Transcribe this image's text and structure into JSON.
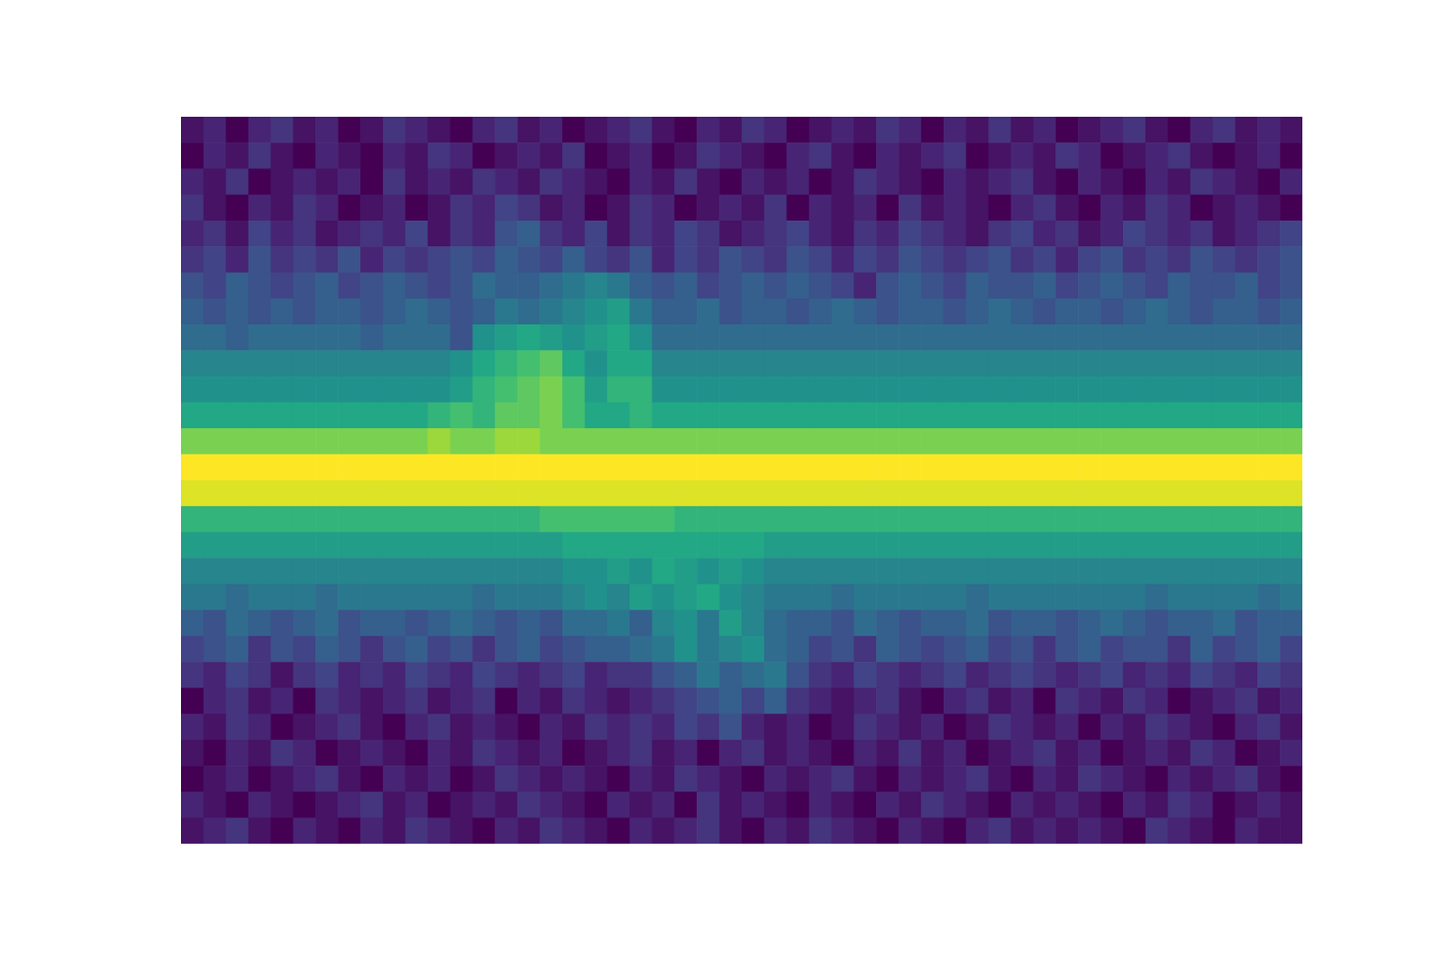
{
  "chart_data": {
    "type": "heatmap",
    "color": "viridis",
    "tick_labels": false,
    "zlim": [
      0,
      20
    ],
    "cells": [
      [
        1,
        2,
        0,
        2,
        3,
        1,
        2,
        0,
        1,
        3,
        2,
        1,
        0,
        2,
        3,
        1,
        2,
        0,
        1,
        2,
        3,
        1,
        0,
        2,
        1,
        3,
        2,
        0,
        1,
        2,
        1,
        3,
        2,
        0,
        2,
        1,
        3,
        1,
        2,
        0,
        1,
        2,
        3,
        1,
        0,
        2,
        3,
        1,
        2,
        1
      ],
      [
        0,
        2,
        1,
        3,
        1,
        0,
        2,
        1,
        0,
        2,
        1,
        3,
        2,
        0,
        1,
        2,
        1,
        3,
        0,
        1,
        2,
        0,
        1,
        3,
        2,
        1,
        0,
        2,
        3,
        1,
        0,
        2,
        1,
        2,
        3,
        0,
        1,
        2,
        1,
        3,
        2,
        0,
        1,
        2,
        3,
        1,
        0,
        1,
        2,
        0
      ],
      [
        2,
        1,
        3,
        0,
        1,
        2,
        1,
        2,
        0,
        3,
        1,
        2,
        1,
        3,
        2,
        1,
        3,
        2,
        1,
        0,
        2,
        1,
        3,
        1,
        0,
        2,
        1,
        2,
        0,
        1,
        3,
        2,
        1,
        0,
        2,
        1,
        2,
        3,
        1,
        0,
        2,
        1,
        0,
        2,
        1,
        3,
        2,
        1,
        0,
        2
      ],
      [
        3,
        1,
        0,
        2,
        1,
        3,
        2,
        0,
        1,
        2,
        0,
        1,
        3,
        2,
        4,
        3,
        1,
        2,
        0,
        1,
        3,
        2,
        0,
        1,
        2,
        1,
        3,
        0,
        2,
        1,
        2,
        0,
        3,
        1,
        2,
        1,
        0,
        2,
        3,
        1,
        0,
        2,
        1,
        3,
        2,
        0,
        1,
        2,
        1,
        0
      ],
      [
        2,
        3,
        1,
        4,
        2,
        3,
        1,
        2,
        3,
        2,
        4,
        1,
        3,
        2,
        5,
        6,
        3,
        2,
        4,
        1,
        3,
        2,
        4,
        3,
        1,
        2,
        3,
        4,
        2,
        1,
        3,
        2,
        4,
        3,
        2,
        1,
        3,
        4,
        2,
        3,
        1,
        2,
        4,
        3,
        2,
        3,
        1,
        2,
        3,
        4
      ],
      [
        3,
        4,
        2,
        5,
        3,
        4,
        3,
        5,
        2,
        4,
        3,
        4,
        5,
        4,
        6,
        5,
        4,
        6,
        4,
        3,
        5,
        2,
        4,
        3,
        5,
        4,
        3,
        5,
        4,
        2,
        4,
        3,
        5,
        4,
        3,
        4,
        5,
        3,
        4,
        2,
        4,
        5,
        3,
        4,
        3,
        5,
        4,
        3,
        4,
        5
      ],
      [
        5,
        4,
        6,
        5,
        4,
        5,
        6,
        4,
        5,
        6,
        5,
        4,
        5,
        7,
        6,
        6,
        7,
        8,
        9,
        8,
        6,
        5,
        6,
        4,
        5,
        6,
        5,
        6,
        5,
        4,
        2,
        5,
        6,
        5,
        4,
        6,
        5,
        5,
        6,
        4,
        5,
        6,
        5,
        4,
        6,
        5,
        5,
        6,
        4,
        5
      ],
      [
        6,
        5,
        6,
        5,
        6,
        5,
        6,
        6,
        5,
        6,
        7,
        6,
        5,
        6,
        8,
        7,
        8,
        9,
        10,
        11,
        8,
        6,
        6,
        7,
        5,
        6,
        6,
        5,
        6,
        7,
        6,
        5,
        6,
        6,
        5,
        6,
        7,
        6,
        5,
        6,
        6,
        5,
        6,
        7,
        6,
        5,
        6,
        6,
        5,
        6
      ],
      [
        7,
        7,
        6,
        7,
        7,
        7,
        7,
        7,
        6,
        7,
        7,
        7,
        5,
        10,
        11,
        12,
        11,
        10,
        11,
        12,
        10,
        7,
        7,
        7,
        7,
        7,
        7,
        7,
        7,
        7,
        7,
        7,
        7,
        7,
        7,
        7,
        7,
        7,
        7,
        7,
        7,
        7,
        7,
        7,
        7,
        7,
        7,
        7,
        7,
        7
      ],
      [
        9,
        9,
        9,
        9,
        9,
        9,
        9,
        9,
        9,
        9,
        9,
        9,
        10,
        12,
        13,
        14,
        15,
        12,
        10,
        12,
        12,
        9,
        9,
        9,
        9,
        9,
        9,
        9,
        9,
        9,
        9,
        9,
        9,
        9,
        9,
        9,
        9,
        9,
        9,
        9,
        9,
        9,
        9,
        9,
        9,
        9,
        9,
        9,
        9,
        9
      ],
      [
        10,
        10,
        10,
        10,
        10,
        10,
        10,
        10,
        10,
        10,
        10,
        10,
        11,
        13,
        14,
        15,
        16,
        14,
        11,
        13,
        13,
        10,
        10,
        10,
        10,
        10,
        10,
        10,
        10,
        10,
        10,
        10,
        10,
        10,
        10,
        10,
        10,
        10,
        10,
        10,
        10,
        10,
        10,
        10,
        10,
        10,
        10,
        10,
        10,
        10
      ],
      [
        12,
        12,
        12,
        12,
        12,
        12,
        12,
        12,
        12,
        12,
        12,
        13,
        14,
        13,
        15,
        15,
        16,
        14,
        12,
        12,
        13,
        12,
        12,
        12,
        12,
        12,
        12,
        12,
        12,
        12,
        12,
        12,
        12,
        12,
        12,
        12,
        12,
        12,
        12,
        12,
        12,
        12,
        12,
        12,
        12,
        12,
        12,
        12,
        12,
        12
      ],
      [
        16,
        16,
        16,
        16,
        16,
        16,
        16,
        16,
        16,
        16,
        16,
        17,
        16,
        16,
        17,
        17,
        16,
        16,
        16,
        16,
        16,
        16,
        16,
        16,
        16,
        16,
        16,
        16,
        16,
        16,
        16,
        16,
        16,
        16,
        16,
        16,
        16,
        16,
        16,
        16,
        16,
        16,
        16,
        16,
        16,
        16,
        16,
        16,
        16,
        16
      ],
      [
        20,
        20,
        20,
        20,
        20,
        20,
        20,
        20,
        20,
        20,
        20,
        20,
        20,
        20,
        20,
        20,
        20,
        20,
        20,
        20,
        20,
        20,
        20,
        20,
        20,
        20,
        20,
        20,
        20,
        20,
        20,
        20,
        20,
        20,
        20,
        20,
        20,
        20,
        20,
        20,
        20,
        20,
        20,
        20,
        20,
        20,
        20,
        20,
        20,
        20
      ],
      [
        19,
        19,
        19,
        19,
        19,
        19,
        19,
        19,
        19,
        19,
        19,
        19,
        19,
        19,
        19,
        19,
        19,
        19,
        19,
        19,
        19,
        19,
        19,
        19,
        19,
        19,
        19,
        19,
        19,
        19,
        19,
        19,
        19,
        19,
        19,
        19,
        19,
        19,
        19,
        19,
        19,
        19,
        19,
        19,
        19,
        19,
        19,
        19,
        19,
        19
      ],
      [
        13,
        13,
        13,
        13,
        13,
        13,
        13,
        13,
        13,
        13,
        13,
        13,
        13,
        13,
        13,
        13,
        14,
        14,
        14,
        14,
        14,
        14,
        13,
        13,
        13,
        13,
        13,
        13,
        13,
        13,
        13,
        13,
        13,
        13,
        13,
        13,
        13,
        13,
        13,
        13,
        13,
        13,
        13,
        13,
        13,
        13,
        13,
        13,
        13,
        13
      ],
      [
        11,
        11,
        11,
        11,
        11,
        11,
        11,
        11,
        11,
        11,
        11,
        11,
        11,
        11,
        11,
        11,
        11,
        12,
        12,
        12,
        12,
        12,
        12,
        12,
        12,
        12,
        11,
        11,
        11,
        11,
        11,
        11,
        11,
        11,
        11,
        11,
        11,
        11,
        11,
        11,
        11,
        11,
        11,
        11,
        11,
        11,
        11,
        11,
        11,
        11
      ],
      [
        9,
        9,
        9,
        9,
        9,
        9,
        9,
        9,
        9,
        9,
        9,
        9,
        9,
        9,
        9,
        9,
        9,
        10,
        10,
        11,
        10,
        12,
        11,
        10,
        11,
        10,
        9,
        9,
        9,
        9,
        9,
        9,
        9,
        9,
        9,
        9,
        9,
        9,
        9,
        9,
        9,
        9,
        9,
        9,
        9,
        9,
        9,
        9,
        9,
        9
      ],
      [
        8,
        8,
        7,
        8,
        8,
        8,
        7,
        8,
        8,
        8,
        8,
        8,
        8,
        7,
        8,
        8,
        8,
        9,
        10,
        9,
        11,
        10,
        11,
        12,
        10,
        9,
        8,
        8,
        8,
        7,
        8,
        8,
        8,
        8,
        8,
        7,
        8,
        8,
        8,
        8,
        8,
        8,
        8,
        7,
        8,
        8,
        8,
        8,
        7,
        8
      ],
      [
        6,
        5,
        7,
        6,
        5,
        6,
        7,
        5,
        6,
        6,
        5,
        6,
        7,
        6,
        5,
        6,
        5,
        7,
        7,
        8,
        6,
        9,
        10,
        8,
        11,
        9,
        7,
        6,
        6,
        5,
        7,
        6,
        5,
        6,
        6,
        7,
        5,
        6,
        6,
        5,
        6,
        7,
        6,
        5,
        6,
        6,
        7,
        5,
        6,
        6
      ],
      [
        4,
        5,
        6,
        3,
        5,
        4,
        6,
        5,
        3,
        5,
        6,
        4,
        5,
        3,
        5,
        6,
        4,
        5,
        6,
        6,
        7,
        8,
        10,
        8,
        9,
        10,
        7,
        6,
        4,
        5,
        3,
        6,
        5,
        4,
        5,
        6,
        4,
        5,
        3,
        5,
        6,
        4,
        5,
        5,
        3,
        6,
        4,
        5,
        6,
        4
      ],
      [
        3,
        2,
        4,
        3,
        1,
        3,
        4,
        2,
        3,
        2,
        4,
        3,
        2,
        4,
        3,
        2,
        3,
        4,
        2,
        3,
        3,
        5,
        6,
        8,
        6,
        7,
        8,
        5,
        3,
        2,
        4,
        3,
        2,
        3,
        4,
        2,
        3,
        4,
        3,
        2,
        3,
        4,
        2,
        3,
        2,
        4,
        3,
        2,
        4,
        3
      ],
      [
        0,
        2,
        3,
        1,
        2,
        0,
        3,
        2,
        1,
        2,
        3,
        1,
        2,
        3,
        0,
        2,
        1,
        3,
        2,
        1,
        2,
        3,
        4,
        5,
        6,
        4,
        6,
        3,
        2,
        1,
        2,
        3,
        1,
        0,
        2,
        3,
        1,
        2,
        0,
        3,
        2,
        1,
        3,
        2,
        0,
        1,
        2,
        3,
        1,
        2
      ],
      [
        2,
        1,
        3,
        2,
        0,
        1,
        2,
        3,
        1,
        0,
        2,
        3,
        1,
        2,
        1,
        0,
        2,
        1,
        3,
        2,
        3,
        2,
        4,
        3,
        5,
        2,
        1,
        2,
        0,
        1,
        3,
        2,
        1,
        2,
        0,
        1,
        3,
        2,
        1,
        2,
        0,
        2,
        1,
        3,
        2,
        1,
        0,
        2,
        3,
        1
      ],
      [
        1,
        0,
        2,
        1,
        3,
        2,
        0,
        1,
        2,
        1,
        0,
        2,
        1,
        3,
        2,
        1,
        2,
        0,
        1,
        2,
        3,
        1,
        2,
        0,
        2,
        3,
        1,
        2,
        1,
        0,
        2,
        1,
        3,
        1,
        2,
        0,
        1,
        2,
        3,
        1,
        2,
        0,
        1,
        2,
        1,
        3,
        2,
        0,
        1,
        2
      ],
      [
        0,
        1,
        2,
        0,
        1,
        2,
        3,
        1,
        0,
        2,
        1,
        2,
        0,
        1,
        3,
        2,
        1,
        2,
        1,
        0,
        2,
        1,
        3,
        2,
        1,
        0,
        2,
        1,
        2,
        3,
        1,
        0,
        2,
        1,
        2,
        3,
        1,
        0,
        2,
        1,
        3,
        2,
        1,
        0,
        2,
        1,
        2,
        3,
        1,
        0
      ],
      [
        2,
        1,
        0,
        2,
        1,
        0,
        1,
        2,
        3,
        1,
        2,
        0,
        1,
        2,
        1,
        3,
        2,
        1,
        0,
        2,
        1,
        2,
        0,
        3,
        1,
        2,
        1,
        0,
        2,
        1,
        0,
        2,
        1,
        3,
        2,
        1,
        0,
        2,
        1,
        2,
        1,
        0,
        2,
        1,
        3,
        2,
        0,
        1,
        2,
        1
      ],
      [
        1,
        2,
        3,
        1,
        0,
        2,
        1,
        0,
        2,
        1,
        3,
        2,
        1,
        0,
        2,
        1,
        3,
        2,
        1,
        0,
        2,
        1,
        2,
        3,
        1,
        0,
        2,
        1,
        3,
        2,
        1,
        0,
        2,
        1,
        0,
        2,
        3,
        1,
        2,
        1,
        2,
        1,
        0,
        3,
        2,
        1,
        0,
        2,
        1,
        1
      ]
    ]
  }
}
